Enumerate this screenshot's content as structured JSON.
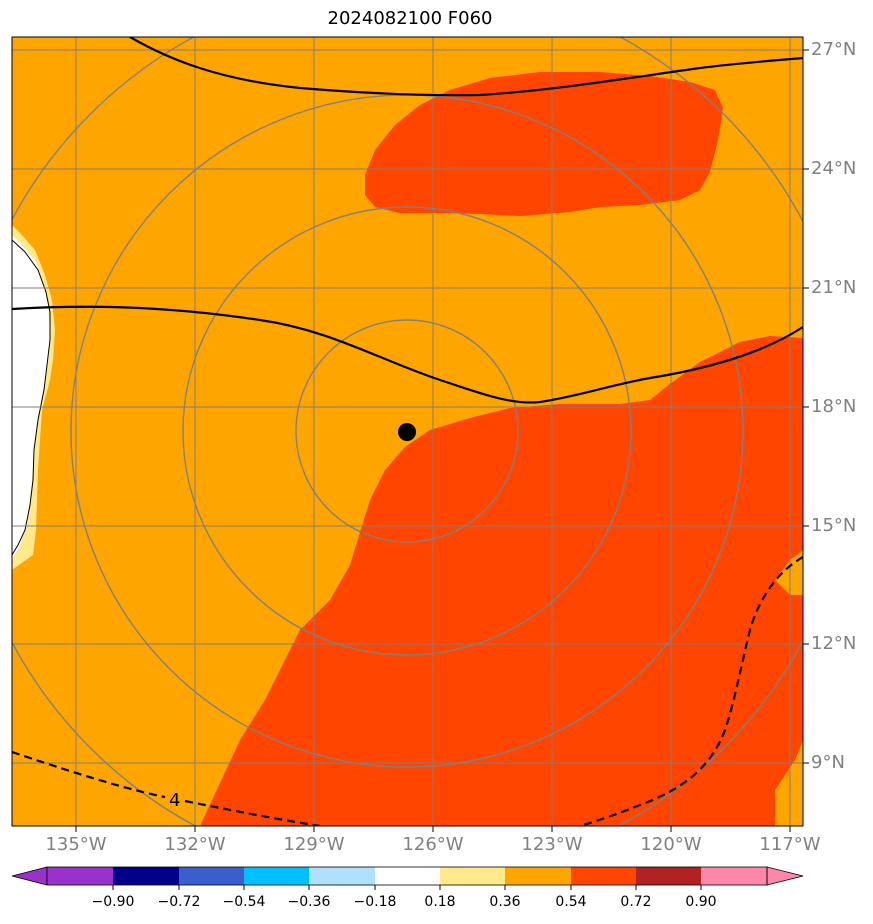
{
  "title": "2024082100 F060",
  "map": {
    "lat_labels": [
      "27°N",
      "24°N",
      "21°N",
      "18°N",
      "15°N",
      "12°N",
      "9°N"
    ],
    "lon_labels": [
      "135°W",
      "132°W",
      "129°W",
      "126°W",
      "123°W",
      "120°W",
      "117°W"
    ],
    "contour_label": "4",
    "storm_center": {
      "lat": 17.4,
      "lon": 126.6
    },
    "colors": {
      "background": "#ffa500",
      "high": "#ff4500",
      "light": "#ffe98a",
      "white": "#ffffff",
      "grid": "#808080"
    }
  },
  "colorbar": {
    "colors": [
      "#9932cc",
      "#00008b",
      "#3a5fcd",
      "#00bfff",
      "#b0e0ff",
      "#ffffff",
      "#ffe98a",
      "#ffa500",
      "#ff4500",
      "#b22222",
      "#ff88aa"
    ],
    "ticks": [
      "−0.90",
      "−0.72",
      "−0.54",
      "−0.36",
      "−0.18",
      "0.18",
      "0.36",
      "0.54",
      "0.72",
      "0.90"
    ]
  }
}
